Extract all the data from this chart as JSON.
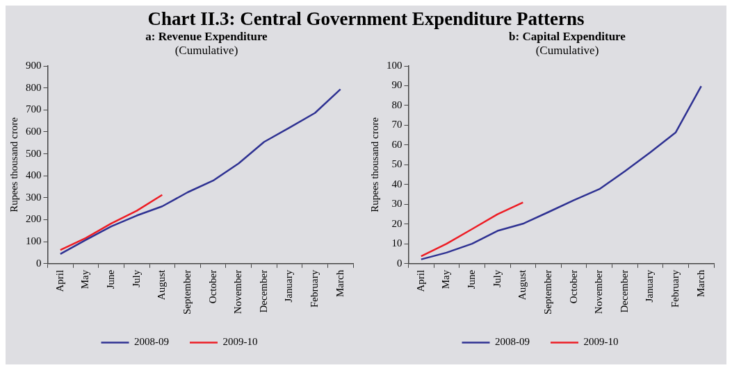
{
  "chart_data": [
    {
      "type": "line",
      "annotations": [
        "Chart II.3: Central Government Expenditure Patterns"
      ],
      "title": "a: Revenue Expenditure",
      "subtitle": "(Cumulative)",
      "ylabel": "Rupees thousand crore",
      "categories": [
        "April",
        "May",
        "June",
        "July",
        "August",
        "September",
        "October",
        "November",
        "December",
        "January",
        "February",
        "March"
      ],
      "series": [
        {
          "name": "2008-09",
          "color": "#2e3192",
          "values": [
            44,
            108,
            170,
            219,
            261,
            325,
            378,
            456,
            554,
            619,
            686,
            794
          ]
        },
        {
          "name": "2009-10",
          "color": "#ed1c24",
          "values": [
            62,
            117,
            183,
            241,
            313,
            null,
            null,
            null,
            null,
            null,
            null,
            null
          ]
        }
      ],
      "ylim": [
        0,
        900
      ],
      "yticks": [
        0,
        100,
        200,
        300,
        400,
        500,
        600,
        700,
        800,
        900
      ],
      "legend": "bottom",
      "marker": "none",
      "line_style": "solid"
    },
    {
      "type": "line",
      "title": "b: Capital Expenditure",
      "subtitle": "(Cumulative)",
      "ylabel": "Rupees thousand crore",
      "categories": [
        "April",
        "May",
        "June",
        "July",
        "August",
        "September",
        "October",
        "November",
        "December",
        "January",
        "February",
        "March"
      ],
      "series": [
        {
          "name": "2008-09",
          "color": "#2e3192",
          "values": [
            2.2,
            5.6,
            10.1,
            16.6,
            20.2,
            26.1,
            32.1,
            37.7,
            46.7,
            56.3,
            66.4,
            89.8
          ]
        },
        {
          "name": "2009-10",
          "color": "#ed1c24",
          "values": [
            3.8,
            10.1,
            17.5,
            25.0,
            31.0,
            null,
            null,
            null,
            null,
            null,
            null,
            null
          ]
        }
      ],
      "ylim": [
        0,
        100
      ],
      "yticks": [
        0,
        10,
        20,
        30,
        40,
        50,
        60,
        70,
        80,
        90,
        100
      ],
      "legend": "bottom",
      "marker": "none",
      "line_style": "solid"
    }
  ]
}
